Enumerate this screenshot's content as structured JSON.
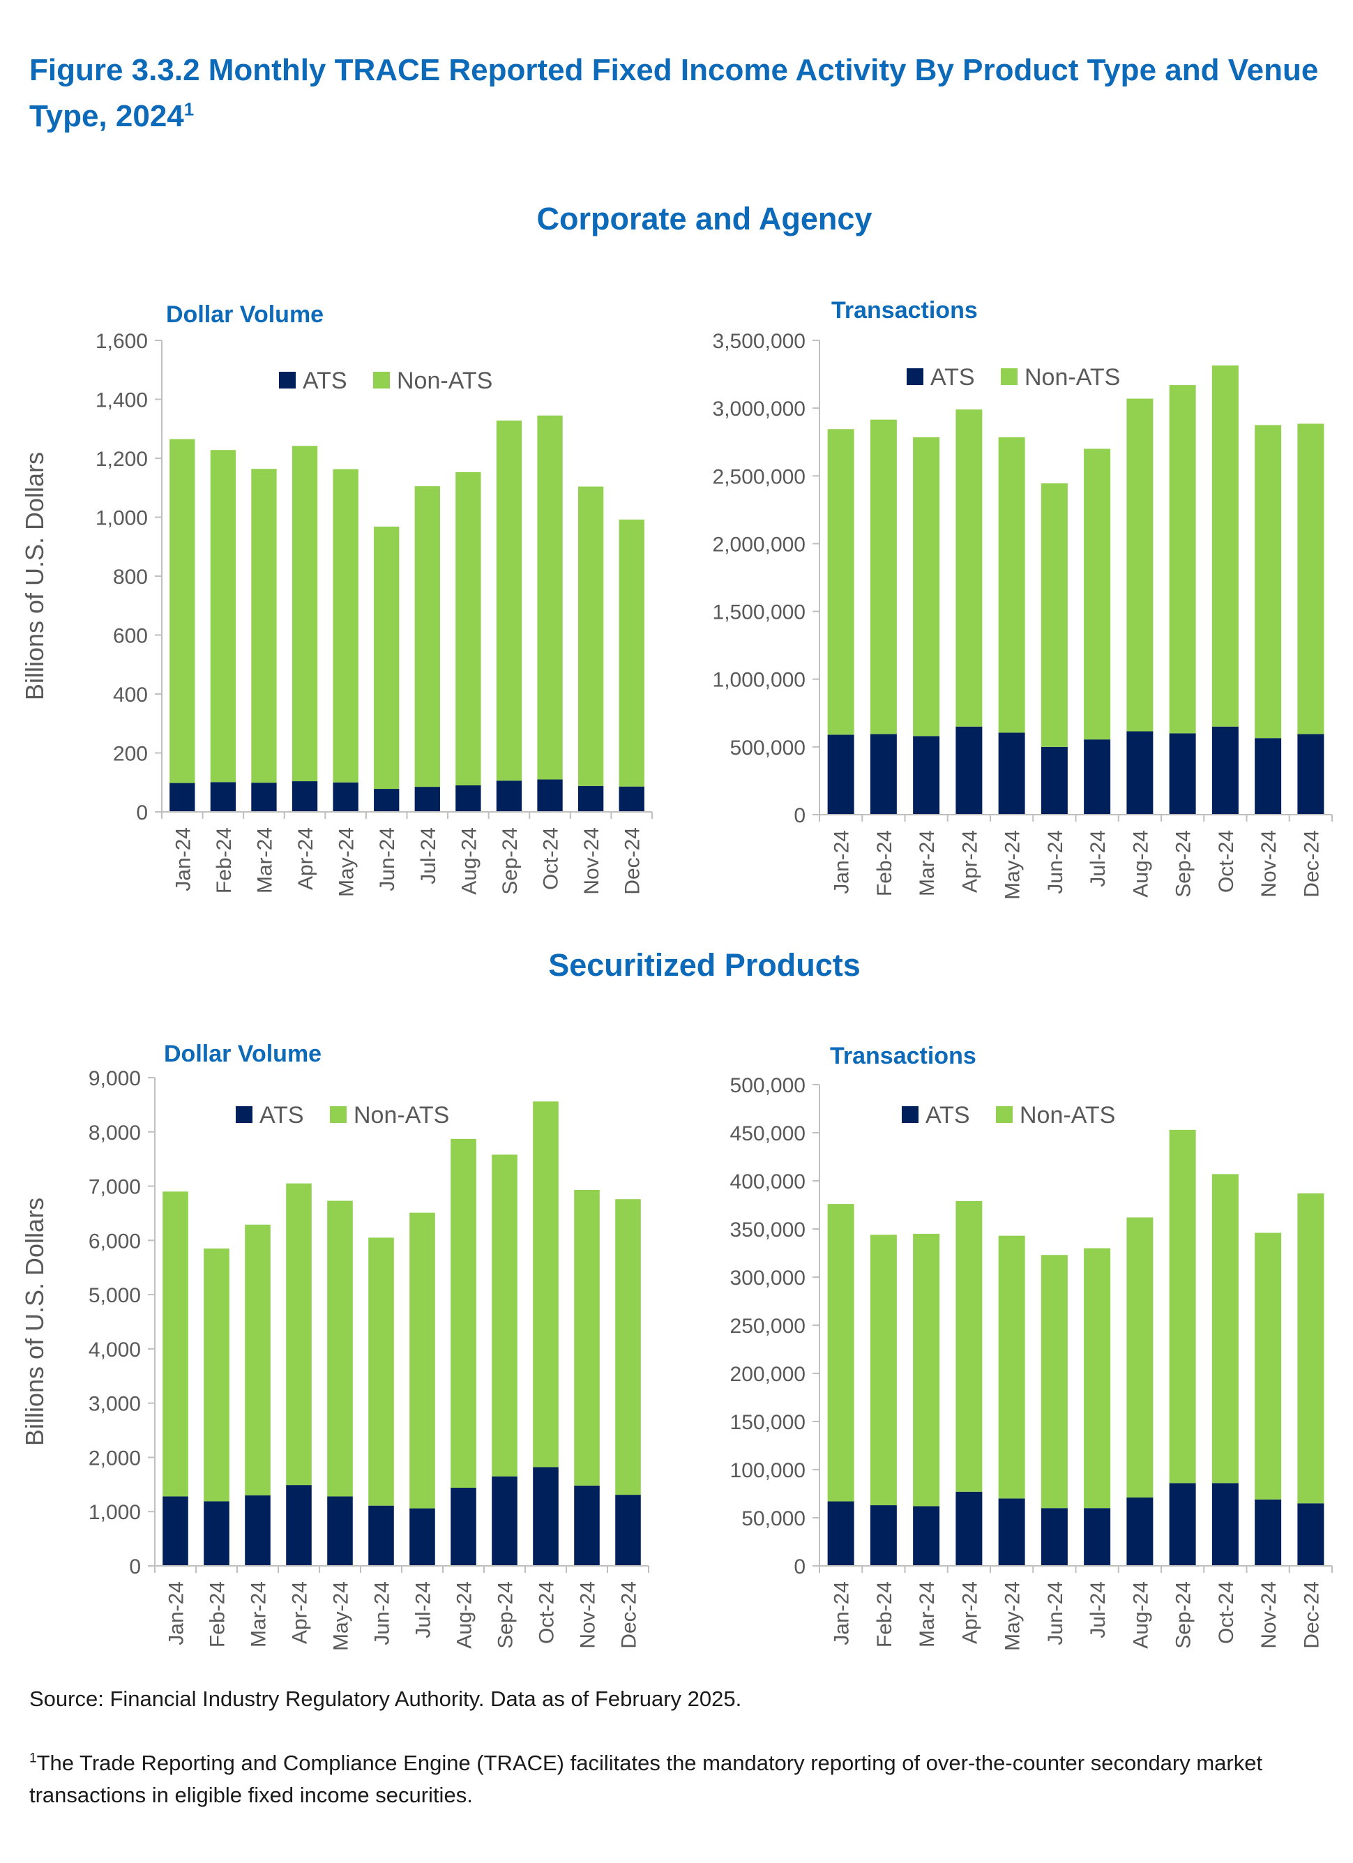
{
  "figure": {
    "title": "Figure 3.3.2 Monthly TRACE Reported Fixed Income Activity By Product Type and Venue Type, 2024",
    "title_footnote_mark": "1"
  },
  "sections": {
    "corporate_agency": "Corporate and Agency",
    "securitized": "Securitized Products"
  },
  "source": "Source: Financial Industry Regulatory Authority. Data as of February 2025.",
  "footnote": {
    "mark": "1",
    "text": "The Trade Reporting and Compliance Engine (TRACE) facilitates the mandatory reporting of over-the-counter secondary market transactions in eligible fixed income securities."
  },
  "colors": {
    "ats": "#00205b",
    "non_ats": "#92d050",
    "title_blue": "#0d6ab9",
    "axis_text": "#595959",
    "axis_line": "#bfbfbf"
  },
  "chart_data": [
    {
      "id": "corp-dollar",
      "type": "bar",
      "stacked": true,
      "title": "Dollar Volume",
      "ylabel": "Billions of U.S. Dollars",
      "ylim": [
        0,
        1600
      ],
      "yticks": [
        "0",
        "200",
        "400",
        "600",
        "800",
        "1,000",
        "1,200",
        "1,400",
        "1,600"
      ],
      "categories": [
        "Jan-24",
        "Feb-24",
        "Mar-24",
        "Apr-24",
        "May-24",
        "Jun-24",
        "Jul-24",
        "Aug-24",
        "Sep-24",
        "Oct-24",
        "Nov-24",
        "Dec-24"
      ],
      "series": [
        {
          "name": "ATS",
          "values": [
            98,
            101,
            99,
            104,
            100,
            78,
            85,
            90,
            106,
            110,
            88,
            86
          ]
        },
        {
          "name": "Non-ATS",
          "values": [
            1167,
            1127,
            1065,
            1138,
            1063,
            890,
            1020,
            1063,
            1222,
            1235,
            1016,
            906
          ]
        }
      ]
    },
    {
      "id": "corp-trans",
      "type": "bar",
      "stacked": true,
      "title": "Transactions",
      "ylabel": "",
      "ylim": [
        0,
        3500000
      ],
      "yticks": [
        "0",
        "500,000",
        "1,000,000",
        "1,500,000",
        "2,000,000",
        "2,500,000",
        "3,000,000",
        "3,500,000"
      ],
      "categories": [
        "Jan-24",
        "Feb-24",
        "Mar-24",
        "Apr-24",
        "May-24",
        "Jun-24",
        "Jul-24",
        "Aug-24",
        "Sep-24",
        "Oct-24",
        "Nov-24",
        "Dec-24"
      ],
      "series": [
        {
          "name": "ATS",
          "values": [
            590000,
            595000,
            580000,
            650000,
            605000,
            500000,
            555000,
            615000,
            600000,
            650000,
            565000,
            595000
          ]
        },
        {
          "name": "Non-ATS",
          "values": [
            2255000,
            2320000,
            2205000,
            2340000,
            2180000,
            1945000,
            2145000,
            2455000,
            2570000,
            2665000,
            2310000,
            2290000
          ]
        }
      ]
    },
    {
      "id": "sec-dollar",
      "type": "bar",
      "stacked": true,
      "title": "Dollar Volume",
      "ylabel": "Billions of U.S. Dollars",
      "ylim": [
        0,
        9000
      ],
      "yticks": [
        "0",
        "1,000",
        "2,000",
        "3,000",
        "4,000",
        "5,000",
        "6,000",
        "7,000",
        "8,000",
        "9,000"
      ],
      "categories": [
        "Jan-24",
        "Feb-24",
        "Mar-24",
        "Apr-24",
        "May-24",
        "Jun-24",
        "Jul-24",
        "Aug-24",
        "Sep-24",
        "Oct-24",
        "Nov-24",
        "Dec-24"
      ],
      "series": [
        {
          "name": "ATS",
          "values": [
            1280,
            1190,
            1300,
            1490,
            1280,
            1110,
            1060,
            1440,
            1650,
            1820,
            1480,
            1310
          ]
        },
        {
          "name": "Non-ATS",
          "values": [
            5620,
            4660,
            4990,
            5560,
            5450,
            4940,
            5450,
            6430,
            5930,
            6740,
            5450,
            5450
          ]
        }
      ]
    },
    {
      "id": "sec-trans",
      "type": "bar",
      "stacked": true,
      "title": "Transactions",
      "ylabel": "",
      "ylim": [
        0,
        500000
      ],
      "yticks": [
        "0",
        "50,000",
        "100,000",
        "150,000",
        "200,000",
        "250,000",
        "300,000",
        "350,000",
        "400,000",
        "450,000",
        "500,000"
      ],
      "categories": [
        "Jan-24",
        "Feb-24",
        "Mar-24",
        "Apr-24",
        "May-24",
        "Jun-24",
        "Jul-24",
        "Aug-24",
        "Sep-24",
        "Oct-24",
        "Nov-24",
        "Dec-24"
      ],
      "series": [
        {
          "name": "ATS",
          "values": [
            67000,
            63000,
            62000,
            77000,
            70000,
            60000,
            60000,
            71000,
            86000,
            86000,
            69000,
            65000
          ]
        },
        {
          "name": "Non-ATS",
          "values": [
            309000,
            281000,
            283000,
            302000,
            273000,
            263000,
            270000,
            291000,
            367000,
            321000,
            277000,
            322000
          ]
        }
      ]
    }
  ]
}
